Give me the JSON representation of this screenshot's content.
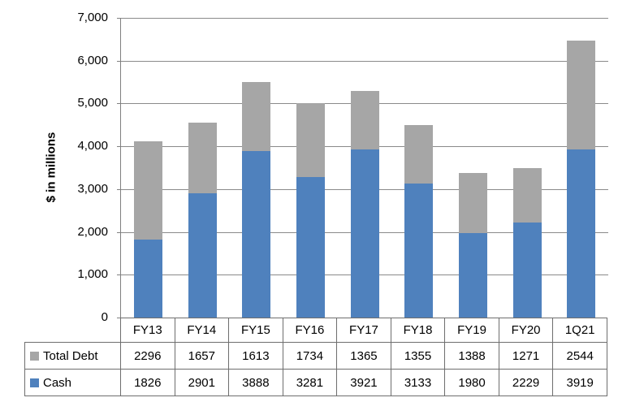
{
  "chart_data": {
    "type": "bar",
    "stacked": true,
    "title": "",
    "xlabel": "",
    "ylabel": "$ in millions",
    "categories": [
      "FY13",
      "FY14",
      "FY15",
      "FY16",
      "FY17",
      "FY18",
      "FY19",
      "FY20",
      "1Q21"
    ],
    "series": [
      {
        "name": "Total Debt",
        "color": "#a6a6a6",
        "values": [
          2296,
          1657,
          1613,
          1734,
          1365,
          1355,
          1388,
          1271,
          2544
        ]
      },
      {
        "name": "Cash",
        "color": "#4f81bd",
        "values": [
          1826,
          2901,
          3888,
          3281,
          3921,
          3133,
          1980,
          2229,
          3919
        ]
      }
    ],
    "stack_order_bottom_to_top": [
      "Cash",
      "Total Debt"
    ],
    "ylim": [
      0,
      7000
    ],
    "ytick_step": 1000,
    "ytick_labels": [
      "0",
      "1,000",
      "2,000",
      "3,000",
      "4,000",
      "5,000",
      "6,000",
      "7,000"
    ],
    "grid": true,
    "legend_position": "data-table-left",
    "colors": {
      "axis": "#808080",
      "gridline": "#8a8a8a",
      "table_border": "#6e6e6e",
      "text": "#000000"
    }
  }
}
